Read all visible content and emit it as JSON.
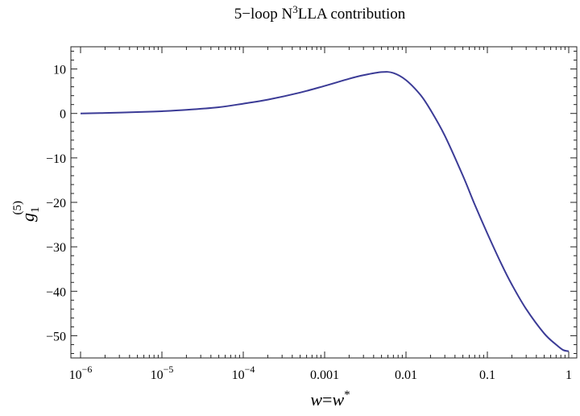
{
  "chart_data": {
    "type": "line",
    "title_parts": [
      "5−loop N",
      "3",
      "LLA contribution"
    ],
    "xlabel_parts": [
      "w",
      "=",
      "w",
      "*"
    ],
    "ylabel_parts": [
      "g",
      "1",
      "(5)"
    ],
    "x_scale": "log",
    "xlim": [
      1e-06,
      1
    ],
    "ylim": [
      -55,
      15
    ],
    "x_ticks": [
      {
        "value": 1e-06,
        "base": "10",
        "exp": "−6"
      },
      {
        "value": 1e-05,
        "base": "10",
        "exp": "−5"
      },
      {
        "value": 0.0001,
        "base": "10",
        "exp": "−4"
      },
      {
        "value": 0.001,
        "label": "0.001"
      },
      {
        "value": 0.01,
        "label": "0.01"
      },
      {
        "value": 0.1,
        "label": "0.1"
      },
      {
        "value": 1,
        "label": "1"
      }
    ],
    "y_ticks": [
      {
        "value": 10,
        "label": "10"
      },
      {
        "value": 0,
        "label": "0"
      },
      {
        "value": -10,
        "label": "−10"
      },
      {
        "value": -20,
        "label": "−20"
      },
      {
        "value": -30,
        "label": "−30"
      },
      {
        "value": -40,
        "label": "−40"
      },
      {
        "value": -50,
        "label": "−50"
      }
    ],
    "series": [
      {
        "name": "g1(5)",
        "color": "#3b3b96",
        "x": [
          1e-06,
          2e-06,
          5e-06,
          1e-05,
          2e-05,
          5e-05,
          0.0001,
          0.0002,
          0.0005,
          0.001,
          0.002,
          0.003,
          0.005,
          0.007,
          0.01,
          0.015,
          0.02,
          0.03,
          0.05,
          0.07,
          0.1,
          0.15,
          0.2,
          0.3,
          0.5,
          0.7,
          0.85,
          1
        ],
        "y": [
          0.0,
          0.1,
          0.3,
          0.5,
          0.8,
          1.4,
          2.2,
          3.1,
          4.7,
          6.2,
          7.8,
          8.6,
          9.3,
          9.1,
          7.5,
          4.2,
          0.8,
          -5.0,
          -14.0,
          -20.5,
          -27.0,
          -34.0,
          -38.5,
          -44.0,
          -49.5,
          -52.0,
          -53.2,
          -53.5
        ]
      }
    ]
  }
}
